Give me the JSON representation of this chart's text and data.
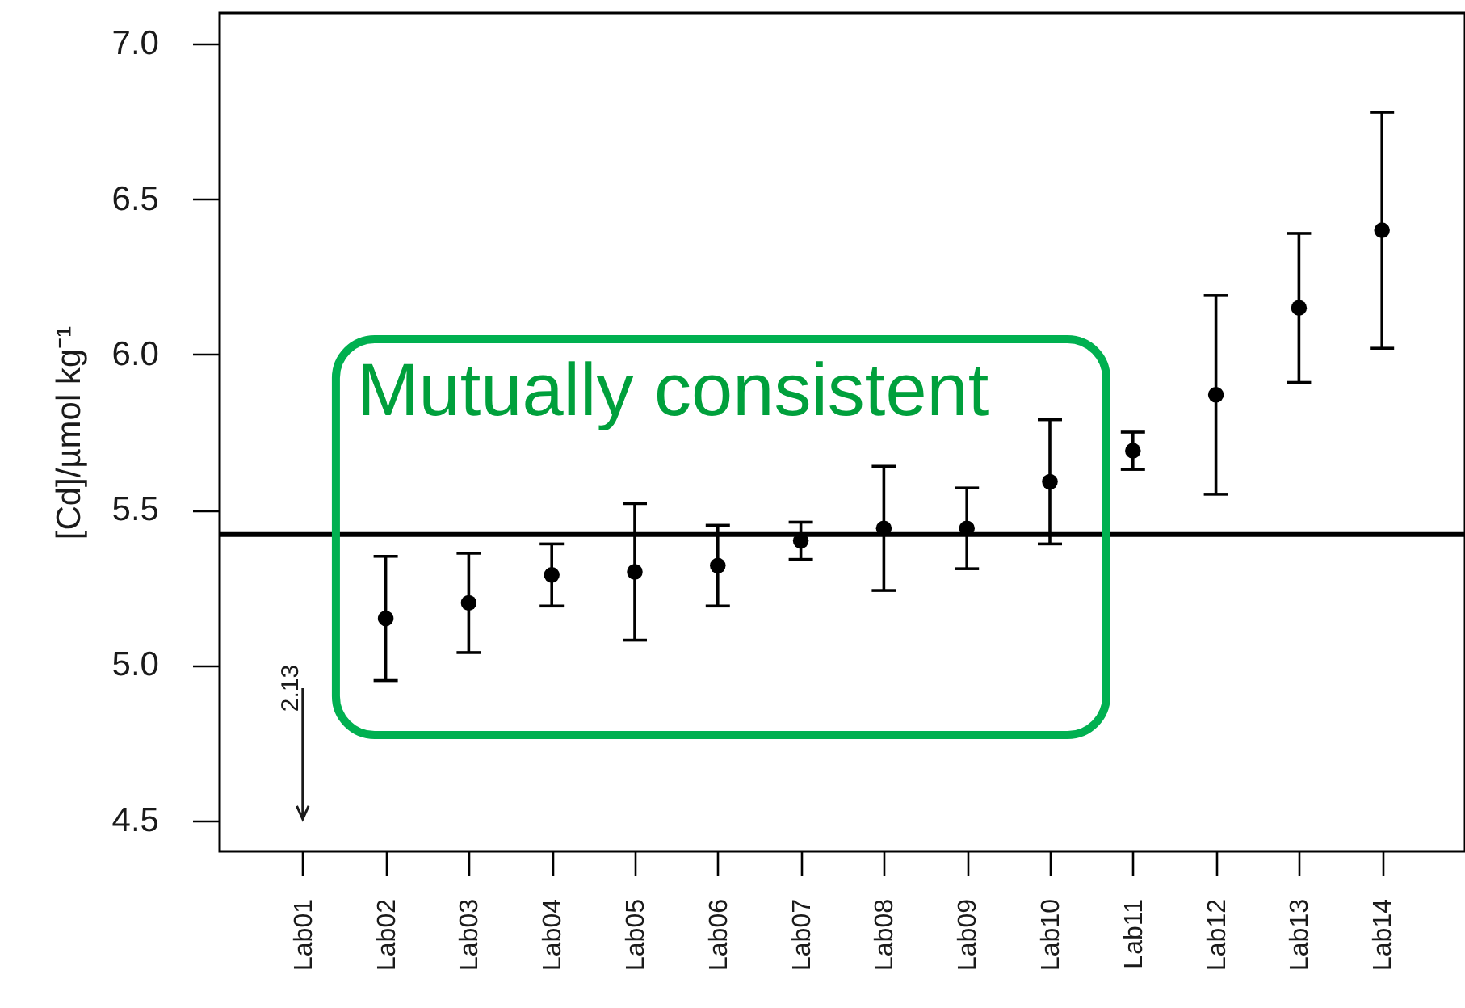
{
  "chart_data": {
    "type": "scatter",
    "ylabel": "[Cd]/µmol kg⁻¹",
    "categories": [
      "Lab01",
      "Lab02",
      "Lab03",
      "Lab04",
      "Lab05",
      "Lab06",
      "Lab07",
      "Lab08",
      "Lab09",
      "Lab10",
      "Lab11",
      "Lab12",
      "Lab13",
      "Lab14"
    ],
    "series": [
      {
        "color": "#000000",
        "values": [
          null,
          5.15,
          5.2,
          5.29,
          5.3,
          5.32,
          5.4,
          5.44,
          5.44,
          5.59,
          5.69,
          5.87,
          6.15,
          6.4
        ],
        "errors": [
          null,
          0.2,
          0.16,
          0.1,
          0.22,
          0.13,
          0.06,
          0.2,
          0.13,
          0.2,
          0.06,
          0.32,
          0.24,
          0.38
        ]
      }
    ],
    "ylim": [
      4.4,
      7.1
    ],
    "yticks": [
      4.5,
      {
        "value": 5,
        "label": "5.0"
      },
      5.5,
      {
        "value": 6,
        "label": "6.0"
      },
      6.5,
      {
        "value": 7,
        "label": "7.0"
      }
    ],
    "marker": "circle",
    "ref_lines": [
      {
        "axis": "y",
        "value": 5.42,
        "color": "#000000"
      }
    ],
    "annotations": [
      "Mutually consistent",
      "2.13"
    ]
  }
}
